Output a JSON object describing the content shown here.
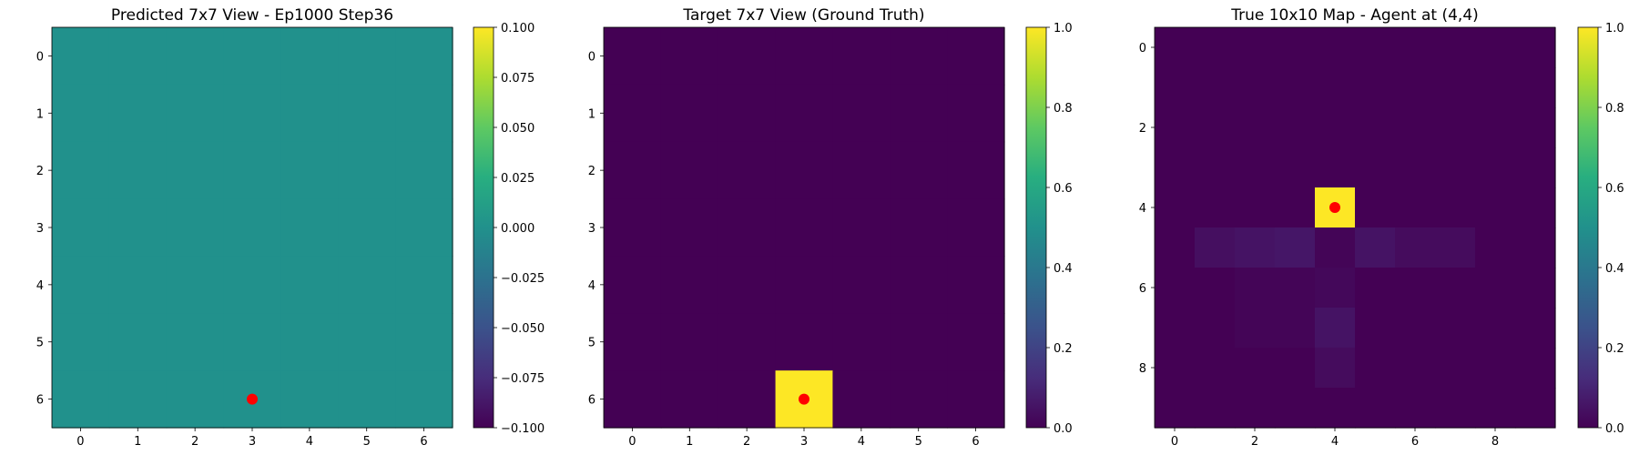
{
  "chart_data": [
    {
      "type": "heatmap",
      "title": "Predicted 7x7 View - Ep1000 Step36",
      "rows": 7,
      "cols": 7,
      "values": [
        [
          0,
          0,
          0,
          0,
          0,
          0,
          0
        ],
        [
          0,
          0,
          0,
          0,
          0,
          0,
          0
        ],
        [
          0,
          0,
          0,
          0,
          0,
          0,
          0
        ],
        [
          0,
          0,
          0,
          0,
          0,
          0,
          0
        ],
        [
          0,
          0,
          0,
          0,
          0,
          0,
          0
        ],
        [
          0,
          0,
          0,
          0,
          0,
          0,
          0
        ],
        [
          0,
          0,
          0,
          0,
          0,
          0,
          0
        ]
      ],
      "agent": {
        "row": 6,
        "col": 3,
        "color": "#ff0000"
      },
      "x_ticks": [
        "0",
        "1",
        "2",
        "3",
        "4",
        "5",
        "6"
      ],
      "y_ticks": [
        "0",
        "1",
        "2",
        "3",
        "4",
        "5",
        "6"
      ],
      "colormap": "viridis",
      "color_range": [
        -0.1,
        0.1
      ],
      "colorbar_ticks": [
        "0.100",
        "0.075",
        "0.050",
        "0.025",
        "0.000",
        "−0.025",
        "−0.050",
        "−0.075",
        "−0.100"
      ],
      "colorbar_tick_values": [
        0.1,
        0.075,
        0.05,
        0.025,
        0.0,
        -0.025,
        -0.05,
        -0.075,
        -0.1
      ]
    },
    {
      "type": "heatmap",
      "title": "Target 7x7 View (Ground Truth)",
      "rows": 7,
      "cols": 7,
      "values": [
        [
          0,
          0,
          0,
          0,
          0,
          0,
          0
        ],
        [
          0,
          0,
          0,
          0,
          0,
          0,
          0
        ],
        [
          0,
          0,
          0,
          0,
          0,
          0,
          0
        ],
        [
          0,
          0,
          0,
          0,
          0,
          0,
          0
        ],
        [
          0,
          0,
          0,
          0,
          0,
          0,
          0
        ],
        [
          0,
          0,
          0,
          0,
          0,
          0,
          0
        ],
        [
          0,
          0,
          0,
          1,
          0,
          0,
          0
        ]
      ],
      "agent": {
        "row": 6,
        "col": 3,
        "color": "#ff0000"
      },
      "x_ticks": [
        "0",
        "1",
        "2",
        "3",
        "4",
        "5",
        "6"
      ],
      "y_ticks": [
        "0",
        "1",
        "2",
        "3",
        "4",
        "5",
        "6"
      ],
      "colormap": "viridis",
      "color_range": [
        0,
        1
      ],
      "colorbar_ticks": [
        "1.0",
        "0.8",
        "0.6",
        "0.4",
        "0.2",
        "0.0"
      ],
      "colorbar_tick_values": [
        1.0,
        0.8,
        0.6,
        0.4,
        0.2,
        0.0
      ]
    },
    {
      "type": "heatmap",
      "title": "True 10x10 Map - Agent at (4,4)",
      "rows": 10,
      "cols": 10,
      "values": [
        [
          0,
          0,
          0,
          0,
          0,
          0,
          0,
          0,
          0,
          0
        ],
        [
          0,
          0,
          0,
          0,
          0,
          0,
          0,
          0,
          0,
          0
        ],
        [
          0,
          0,
          0,
          0,
          0,
          0,
          0,
          0,
          0,
          0
        ],
        [
          0,
          0,
          0,
          0,
          0,
          0,
          0,
          0,
          0,
          0
        ],
        [
          0,
          0,
          0,
          0,
          1,
          0,
          0,
          0,
          0,
          0
        ],
        [
          0,
          0.04,
          0.05,
          0.06,
          0.01,
          0.05,
          0.03,
          0.03,
          0,
          0
        ],
        [
          0,
          0,
          0.01,
          0.01,
          0.02,
          0,
          0,
          0,
          0,
          0
        ],
        [
          0,
          0,
          0.01,
          0.01,
          0.05,
          0,
          0,
          0,
          0,
          0
        ],
        [
          0,
          0,
          0,
          0,
          0.03,
          0,
          0,
          0,
          0,
          0
        ],
        [
          0,
          0,
          0,
          0,
          0,
          0,
          0,
          0,
          0,
          0
        ]
      ],
      "agent": {
        "row": 4,
        "col": 4,
        "color": "#ff0000"
      },
      "x_ticks": [
        "0",
        "2",
        "4",
        "6",
        "8"
      ],
      "x_tick_values": [
        0,
        2,
        4,
        6,
        8
      ],
      "y_ticks": [
        "0",
        "2",
        "4",
        "6",
        "8"
      ],
      "y_tick_values": [
        0,
        2,
        4,
        6,
        8
      ],
      "colormap": "viridis",
      "color_range": [
        0,
        1
      ],
      "colorbar_ticks": [
        "1.0",
        "0.8",
        "0.6",
        "0.4",
        "0.2",
        "0.0"
      ],
      "colorbar_tick_values": [
        1.0,
        0.8,
        0.6,
        0.4,
        0.2,
        0.0
      ]
    }
  ]
}
